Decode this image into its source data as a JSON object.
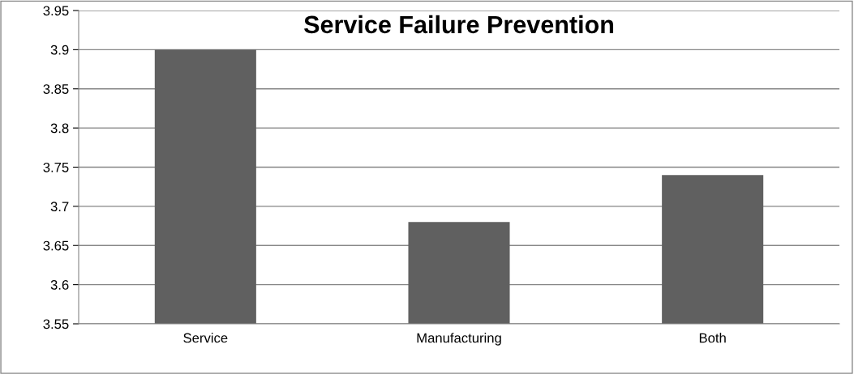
{
  "chart_data": {
    "type": "bar",
    "title": "Service Failure Prevention",
    "categories": [
      "Service",
      "Manufacturing",
      "Both"
    ],
    "values": [
      3.9,
      3.68,
      3.74
    ],
    "color": "#606060",
    "ylim": [
      3.55,
      3.95
    ],
    "yticks": [
      3.55,
      3.6,
      3.65,
      3.7,
      3.75,
      3.8,
      3.85,
      3.9,
      3.95
    ],
    "grid": "y",
    "legend": false
  }
}
